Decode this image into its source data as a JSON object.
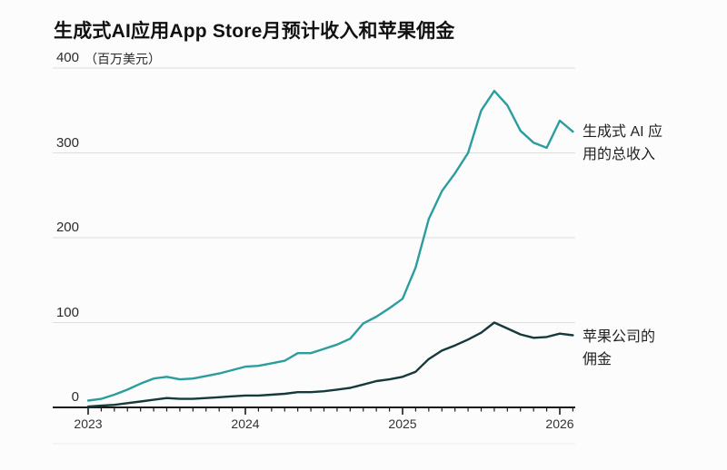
{
  "title": "生成式AI应用App Store月预计收入和苹果佣金",
  "y_axis": {
    "unit": "（百万美元）",
    "ticks": [
      "400",
      "300",
      "200",
      "100",
      "0"
    ]
  },
  "x_axis": {
    "year_ticks": [
      "2023",
      "2024",
      "2025",
      "2026"
    ]
  },
  "annotations": {
    "revenue": {
      "lines": [
        "生成式 AI 应",
        "用的总收入"
      ]
    },
    "commission": {
      "lines": [
        "苹果公司的",
        "佣金"
      ]
    }
  },
  "colors": {
    "revenue_line": "#2b9d9e",
    "commission_line": "#143a3c",
    "grid": "#dedede",
    "axis": "#1a1a1a",
    "faint_rule": "#ececec",
    "background": "#fcfcfc",
    "text": "#222222"
  },
  "chart_data": {
    "type": "line",
    "title": "生成式AI应用App Store月预计收入和苹果佣金",
    "xlabel": "",
    "ylabel": "百万美元",
    "ylim": [
      0,
      400
    ],
    "y_gridlines": [
      0,
      100,
      200,
      300,
      400
    ],
    "grid": true,
    "legend_position": "right-annotations",
    "x_interval": "month",
    "categories": [
      "2023-01",
      "2023-02",
      "2023-03",
      "2023-04",
      "2023-05",
      "2023-06",
      "2023-07",
      "2023-08",
      "2023-09",
      "2023-10",
      "2023-11",
      "2023-12",
      "2024-01",
      "2024-02",
      "2024-03",
      "2024-04",
      "2024-05",
      "2024-06",
      "2024-07",
      "2024-08",
      "2024-09",
      "2024-10",
      "2024-11",
      "2024-12",
      "2025-01",
      "2025-02",
      "2025-03",
      "2025-04",
      "2025-05",
      "2025-06",
      "2025-07",
      "2025-08",
      "2025-09",
      "2025-10",
      "2025-11",
      "2025-12",
      "2026-01",
      "2026-02"
    ],
    "series": [
      {
        "name": "生成式 AI 应用的总收入",
        "color": "#2b9d9e",
        "values": [
          8,
          10,
          15,
          21,
          28,
          34,
          36,
          33,
          34,
          37,
          40,
          44,
          48,
          49,
          52,
          55,
          64,
          64,
          69,
          74,
          81,
          99,
          107,
          117,
          128,
          165,
          222,
          255,
          276,
          300,
          350,
          373,
          356,
          326,
          312,
          306,
          338,
          325
        ]
      },
      {
        "name": "苹果公司的佣金",
        "color": "#143a3c",
        "values": [
          1,
          2,
          3,
          5,
          7,
          9,
          11,
          10,
          10,
          11,
          12,
          13,
          14,
          14,
          15,
          16,
          18,
          18,
          19,
          21,
          23,
          27,
          31,
          33,
          36,
          42,
          57,
          67,
          73,
          80,
          88,
          100,
          93,
          86,
          82,
          83,
          87,
          85
        ]
      }
    ]
  }
}
